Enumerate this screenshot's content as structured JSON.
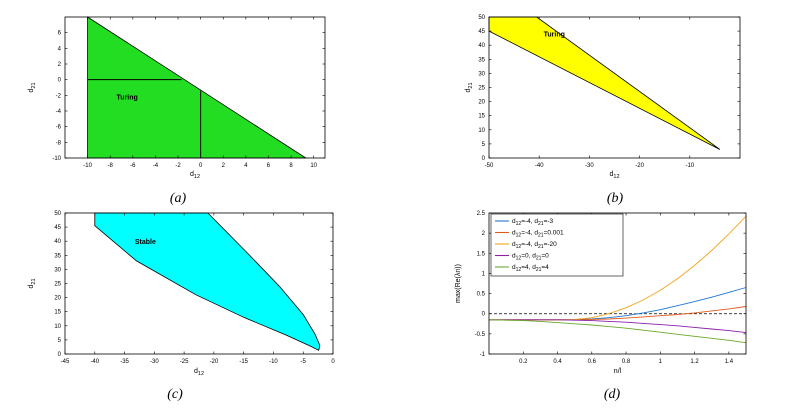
{
  "chart_data": [
    {
      "id": "a",
      "type": "area",
      "caption": "(a)",
      "xlabel": "d12",
      "ylabel": "d21",
      "xlim": [
        -12,
        11
      ],
      "ylim": [
        -10,
        8
      ],
      "xticks": [
        -10,
        -8,
        -6,
        -4,
        -2,
        0,
        2,
        4,
        6,
        8,
        10
      ],
      "yticks": [
        -10,
        -8,
        -6,
        -4,
        -2,
        0,
        2,
        4,
        6
      ],
      "region_label": "Turing",
      "region_label_at": [
        -6.5,
        -2.5
      ],
      "region_color": "#22dd22",
      "polygon": [
        [
          -10,
          8
        ],
        [
          -10,
          -10
        ],
        [
          9.3,
          -10
        ]
      ],
      "lines": [
        [
          [
            -10,
            0
          ],
          [
            -1.7,
            0
          ]
        ],
        [
          [
            0,
            -1.4
          ],
          [
            0,
            -10
          ]
        ]
      ]
    },
    {
      "id": "b",
      "type": "area",
      "caption": "(b)",
      "xlabel": "d12",
      "ylabel": "d21",
      "xlim": [
        -50,
        0
      ],
      "ylim": [
        0,
        50
      ],
      "xticks": [
        -50,
        -40,
        -30,
        -20,
        -10
      ],
      "yticks": [
        0,
        5,
        10,
        15,
        20,
        25,
        30,
        35,
        40,
        45,
        50
      ],
      "region_label": "Turing",
      "region_label_at": [
        -37,
        43
      ],
      "region_color": "#ffff00",
      "polygon": [
        [
          -50,
          50
        ],
        [
          -40.5,
          50
        ],
        [
          -4,
          3
        ],
        [
          -50,
          45
        ]
      ]
    },
    {
      "id": "c",
      "type": "area",
      "caption": "(c)",
      "xlabel": "d12",
      "ylabel": "d21",
      "xlim": [
        -45,
        0
      ],
      "ylim": [
        0,
        50
      ],
      "xticks": [
        -45,
        -40,
        -35,
        -30,
        -25,
        -20,
        -15,
        -10,
        -5,
        0
      ],
      "yticks": [
        0,
        5,
        10,
        15,
        20,
        25,
        30,
        35,
        40,
        45,
        50
      ],
      "region_label": "Stable",
      "region_label_at": [
        -31.5,
        39
      ],
      "region_color": "#00ffff",
      "polygon": [
        [
          -40,
          50
        ],
        [
          -21,
          50
        ],
        [
          -14,
          35
        ],
        [
          -9,
          24
        ],
        [
          -5,
          14
        ],
        [
          -3,
          7
        ],
        [
          -2.2,
          3
        ],
        [
          -2.4,
          1.3
        ],
        [
          -3.8,
          2.8
        ],
        [
          -8,
          6.8
        ],
        [
          -15,
          13
        ],
        [
          -23,
          21
        ],
        [
          -33,
          33
        ],
        [
          -40,
          45.5
        ]
      ]
    },
    {
      "id": "d",
      "type": "line",
      "caption": "(d)",
      "xlabel": "n/l",
      "ylabel": "max(Re(λn))",
      "xlim": [
        0,
        1.5
      ],
      "ylim": [
        -1,
        2.5
      ],
      "xticks": [
        0.2,
        0.4,
        0.6,
        0.8,
        1,
        1.2,
        1.4
      ],
      "yticks": [
        -1,
        -0.5,
        0,
        0.5,
        1,
        1.5,
        2,
        2.5
      ],
      "baseline": 0,
      "x": [
        0,
        0.1,
        0.2,
        0.3,
        0.4,
        0.5,
        0.6,
        0.7,
        0.8,
        0.9,
        1.0,
        1.1,
        1.2,
        1.3,
        1.4,
        1.5
      ],
      "series": [
        {
          "name": "d12=-4, d21=-3",
          "label_lines": [
            {
              "base": "d",
              "sub": "12",
              "tail": "=-4, d",
              "sub2": "21",
              "end": "=-3"
            }
          ],
          "color": "#1f77d4",
          "values": [
            -0.15,
            -0.15,
            -0.15,
            -0.15,
            -0.15,
            -0.14,
            -0.13,
            -0.1,
            -0.05,
            0.02,
            0.1,
            0.2,
            0.3,
            0.41,
            0.53,
            0.65
          ]
        },
        {
          "name": "d12=-4, d21=0.001",
          "label_lines": [
            {
              "base": "d",
              "sub": "12",
              "tail": "=-4, d",
              "sub2": "21",
              "end": "=0.001"
            }
          ],
          "color": "#e05a1a",
          "values": [
            -0.15,
            -0.15,
            -0.15,
            -0.15,
            -0.15,
            -0.15,
            -0.14,
            -0.13,
            -0.11,
            -0.08,
            -0.05,
            -0.02,
            0.02,
            0.07,
            0.12,
            0.18
          ]
        },
        {
          "name": "d12=-4, d21=-20",
          "label_lines": [
            {
              "base": "d",
              "sub": "12",
              "tail": "=-4, d",
              "sub2": "21",
              "end": "=-20"
            }
          ],
          "color": "#f5a31a",
          "values": [
            -0.15,
            -0.15,
            -0.15,
            -0.15,
            -0.15,
            -0.14,
            -0.1,
            0.0,
            0.15,
            0.34,
            0.58,
            0.87,
            1.2,
            1.57,
            1.98,
            2.42
          ]
        },
        {
          "name": "d12=0, d21=0",
          "label_lines": [
            {
              "base": "d",
              "sub": "12",
              "tail": "=0, d",
              "sub2": "21",
              "end": "=0"
            }
          ],
          "color": "#8b1fa8",
          "values": [
            -0.15,
            -0.15,
            -0.15,
            -0.15,
            -0.15,
            -0.16,
            -0.17,
            -0.19,
            -0.21,
            -0.24,
            -0.27,
            -0.3,
            -0.34,
            -0.38,
            -0.42,
            -0.47
          ]
        },
        {
          "name": "d12=4, d21=4",
          "label_lines": [
            {
              "base": "d",
              "sub": "12",
              "tail": "=4, d",
              "sub2": "21",
              "end": "=4"
            }
          ],
          "color": "#6aa82a",
          "values": [
            -0.15,
            -0.16,
            -0.17,
            -0.19,
            -0.22,
            -0.25,
            -0.28,
            -0.32,
            -0.36,
            -0.41,
            -0.46,
            -0.51,
            -0.56,
            -0.61,
            -0.66,
            -0.72
          ]
        }
      ]
    }
  ]
}
